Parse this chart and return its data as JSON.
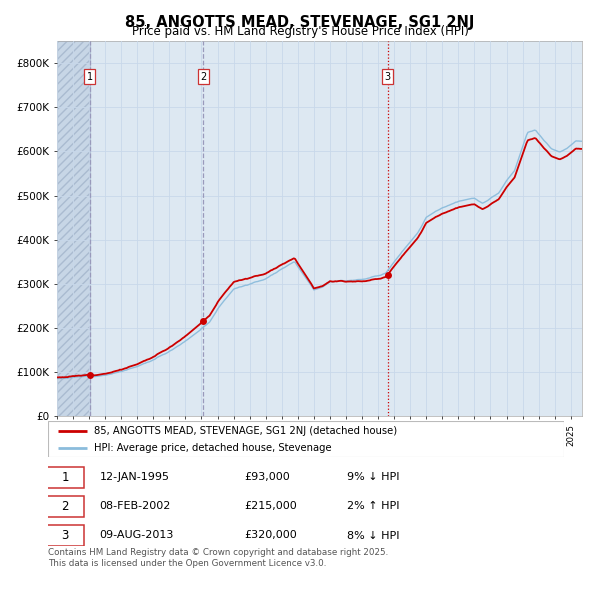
{
  "title": "85, ANGOTTS MEAD, STEVENAGE, SG1 2NJ",
  "subtitle": "Price paid vs. HM Land Registry's House Price Index (HPI)",
  "title_fontsize": 10.5,
  "subtitle_fontsize": 8.5,
  "ylim": [
    0,
    850000
  ],
  "yticks": [
    0,
    100000,
    200000,
    300000,
    400000,
    500000,
    600000,
    700000,
    800000
  ],
  "ytick_labels": [
    "£0",
    "£100K",
    "£200K",
    "£300K",
    "£400K",
    "£500K",
    "£600K",
    "£700K",
    "£800K"
  ],
  "hpi_line_color": "#8bbcdc",
  "price_line_color": "#cc0000",
  "dot_color": "#cc0000",
  "grid_color": "#c8d8ea",
  "bg_color": "#dde8f2",
  "hatch_color": "#c5d5e5",
  "legend_label_red": "85, ANGOTTS MEAD, STEVENAGE, SG1 2NJ (detached house)",
  "legend_label_blue": "HPI: Average price, detached house, Stevenage",
  "transactions": [
    {
      "label": "1",
      "date": "12-JAN-1995",
      "price": "£93,000",
      "hpi_pct": "9% ↓ HPI",
      "x_year": 1995.04,
      "y_val": 93000
    },
    {
      "label": "2",
      "date": "08-FEB-2002",
      "price": "£215,000",
      "hpi_pct": "2% ↑ HPI",
      "x_year": 2002.11,
      "y_val": 215000
    },
    {
      "label": "3",
      "date": "09-AUG-2013",
      "price": "£320,000",
      "hpi_pct": "8% ↓ HPI",
      "x_year": 2013.6,
      "y_val": 320000
    }
  ],
  "footer_text": "Contains HM Land Registry data © Crown copyright and database right 2025.\nThis data is licensed under the Open Government Licence v3.0.",
  "xlim_start": 1993.0,
  "xlim_end": 2025.7,
  "hatch_before_date": 1995.04,
  "waypoints_hpi": {
    "1993.0": 85000,
    "1994.0": 88000,
    "1995.0": 90000,
    "1996.0": 96000,
    "1997.0": 105000,
    "1998.0": 115000,
    "1999.0": 130000,
    "2000.0": 150000,
    "2001.0": 175000,
    "2002.0": 205000,
    "2002.5": 218000,
    "2003.0": 248000,
    "2004.0": 295000,
    "2005.0": 305000,
    "2006.0": 318000,
    "2007.0": 342000,
    "2007.8": 360000,
    "2009.0": 298000,
    "2009.5": 305000,
    "2010.0": 318000,
    "2011.0": 320000,
    "2012.0": 325000,
    "2013.0": 332000,
    "2013.5": 340000,
    "2014.5": 390000,
    "2015.5": 435000,
    "2016.0": 468000,
    "2017.0": 490000,
    "2018.0": 505000,
    "2019.0": 510000,
    "2019.5": 498000,
    "2020.5": 520000,
    "2021.0": 548000,
    "2021.5": 570000,
    "2022.3": 655000,
    "2022.8": 660000,
    "2023.3": 638000,
    "2023.8": 618000,
    "2024.3": 612000,
    "2024.8": 622000,
    "2025.3": 638000
  }
}
